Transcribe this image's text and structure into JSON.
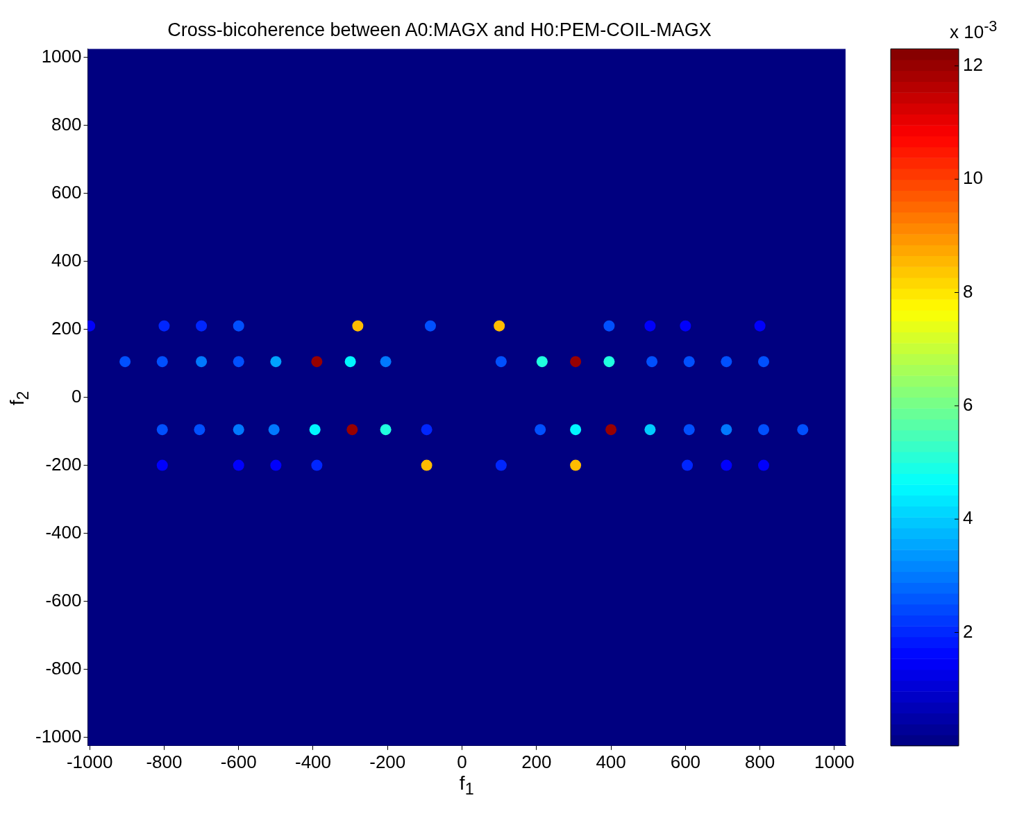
{
  "chart_data": {
    "type": "scatter",
    "title": "Cross-bicoherence between A0:MAGX and H0:PEM-COIL-MAGX",
    "xlabel": "f$_{1}$",
    "ylabel": "f$_{2}$",
    "clabel": "x 10$^{-3}$",
    "xlim": [
      -1005,
      1030
    ],
    "ylim": [
      -1025,
      1025
    ],
    "xticks": [
      -1000,
      -800,
      -600,
      -400,
      -200,
      0,
      200,
      400,
      600,
      800,
      1000
    ],
    "yticks": [
      -1000,
      -800,
      -600,
      -400,
      -200,
      0,
      200,
      400,
      600,
      800,
      1000
    ],
    "clim": [
      0,
      12.3
    ],
    "cticks": [
      2,
      4,
      6,
      8,
      10,
      12
    ],
    "grid": false,
    "legend": false,
    "marker": "circle",
    "x": [
      -1000,
      -800,
      -700,
      -600,
      -280,
      -85,
      100,
      395,
      505,
      600,
      800,
      -905,
      -805,
      -700,
      -600,
      -500,
      -390,
      -300,
      -205,
      105,
      215,
      305,
      395,
      510,
      610,
      710,
      810,
      -805,
      -705,
      -600,
      -505,
      -395,
      -295,
      -205,
      -95,
      210,
      305,
      400,
      505,
      610,
      710,
      810,
      915,
      -805,
      -600,
      -500,
      -390,
      -95,
      105,
      305,
      605,
      710,
      810
    ],
    "values": [
      210,
      210,
      210,
      210,
      210,
      210,
      210,
      210,
      210,
      210,
      210,
      105,
      105,
      105,
      105,
      105,
      105,
      105,
      105,
      105,
      105,
      105,
      105,
      105,
      105,
      105,
      105,
      -95,
      -95,
      -95,
      -95,
      -95,
      -95,
      -95,
      -95,
      -95,
      -95,
      -95,
      -95,
      -95,
      -95,
      -95,
      -95,
      -200,
      -200,
      -200,
      -200,
      -200,
      -200,
      -200,
      -200,
      -200,
      -200
    ],
    "cvalues": [
      1.5,
      2,
      2,
      2.5,
      8.5,
      2.5,
      8.5,
      2.5,
      1.5,
      1.5,
      1.5,
      2.5,
      2.5,
      3,
      2.5,
      3.5,
      12,
      4.5,
      3,
      2.5,
      5,
      12,
      5,
      2.5,
      2.5,
      2.5,
      2.5,
      2.5,
      2.5,
      3,
      3,
      4.5,
      12,
      5,
      2,
      2.5,
      4.5,
      12,
      4,
      2.5,
      3,
      2.5,
      2.5,
      1.5,
      1.5,
      1.5,
      2,
      8.5,
      2,
      8.5,
      2,
      1.5,
      1.5
    ]
  }
}
